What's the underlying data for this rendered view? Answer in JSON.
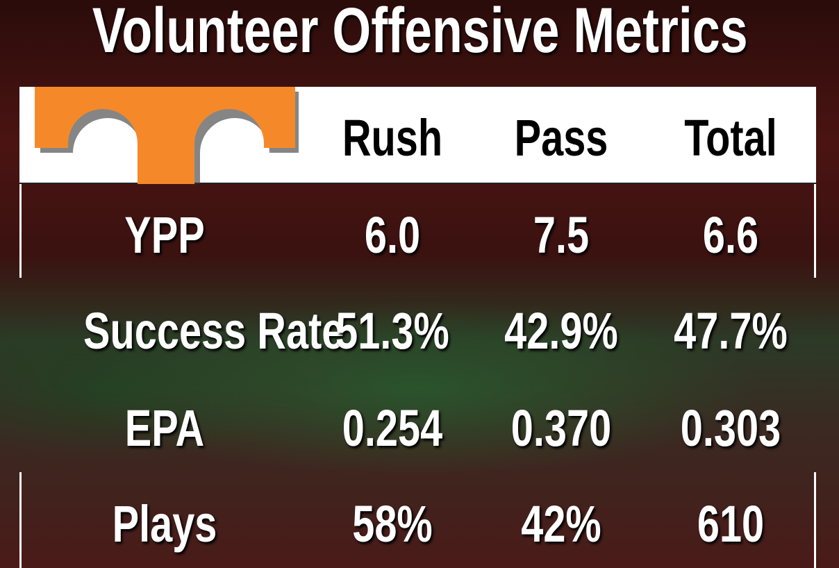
{
  "title": "Volunteer Offensive Metrics",
  "logo": {
    "color": "#F5892A",
    "text": "T"
  },
  "chart_data": {
    "type": "table",
    "title": "Volunteer Offensive Metrics",
    "columns": [
      "Rush",
      "Pass",
      "Total"
    ],
    "rows": [
      {
        "label": "YPP",
        "values": [
          "6.0",
          "7.5",
          "6.6"
        ]
      },
      {
        "label": "Success Rate",
        "values": [
          "51.3%",
          "42.9%",
          "47.7%"
        ]
      },
      {
        "label": "EPA",
        "values": [
          "0.254",
          "0.370",
          "0.303"
        ]
      },
      {
        "label": "Plays",
        "values": [
          "58%",
          "42%",
          "610"
        ]
      }
    ]
  }
}
